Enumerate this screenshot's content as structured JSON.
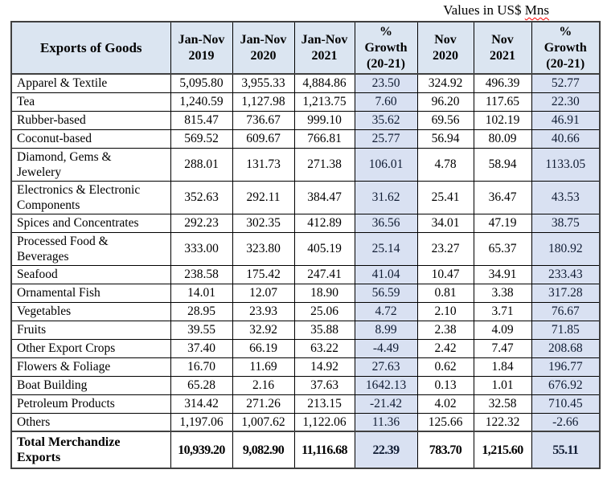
{
  "caption": {
    "prefix": "Values in US$",
    "misspelled_word": "Mns"
  },
  "table": {
    "columns": [
      "Exports of Goods",
      "Jan-Nov\n2019",
      "Jan-Nov\n2020",
      "Jan-Nov\n2021",
      "%\nGrowth\n(20-21)",
      "Nov\n2020",
      "Nov\n2021",
      "%\nGrowth\n(20-21)"
    ],
    "rows": [
      {
        "label": "Apparel & Textile",
        "values": [
          "5,095.80",
          "3,955.33",
          "4,884.86",
          "23.50",
          "324.92",
          "496.39",
          "52.77"
        ]
      },
      {
        "label": "Tea",
        "values": [
          "1,240.59",
          "1,127.98",
          "1,213.75",
          "7.60",
          "96.20",
          "117.65",
          "22.30"
        ]
      },
      {
        "label": "Rubber-based",
        "values": [
          "815.47",
          "736.67",
          "999.10",
          "35.62",
          "69.56",
          "102.19",
          "46.91"
        ]
      },
      {
        "label": "Coconut-based",
        "values": [
          "569.52",
          "609.67",
          "766.81",
          "25.77",
          "56.94",
          "80.09",
          "40.66"
        ]
      },
      {
        "label": "Diamond, Gems &\nJewelery",
        "values": [
          "288.01",
          "131.73",
          "271.38",
          "106.01",
          "4.78",
          "58.94",
          "1133.05"
        ]
      },
      {
        "label": "Electronics & Electronic\nComponents",
        "values": [
          "352.63",
          "292.11",
          "384.47",
          "31.62",
          "25.41",
          "36.47",
          "43.53"
        ]
      },
      {
        "label": "Spices and Concentrates",
        "values": [
          "292.23",
          "302.35",
          "412.89",
          "36.56",
          "34.01",
          "47.19",
          "38.75"
        ]
      },
      {
        "label": "Processed Food &\nBeverages",
        "values": [
          "333.00",
          "323.80",
          "405.19",
          "25.14",
          "23.27",
          "65.37",
          "180.92"
        ]
      },
      {
        "label": "Seafood",
        "values": [
          "238.58",
          "175.42",
          "247.41",
          "41.04",
          "10.47",
          "34.91",
          "233.43"
        ]
      },
      {
        "label": "Ornamental Fish",
        "values": [
          "14.01",
          "12.07",
          "18.90",
          "56.59",
          "0.81",
          "3.38",
          "317.28"
        ]
      },
      {
        "label": "Vegetables",
        "values": [
          "28.95",
          "23.93",
          "25.06",
          "4.72",
          "2.10",
          "3.71",
          "76.67"
        ]
      },
      {
        "label": "Fruits",
        "values": [
          "39.55",
          "32.92",
          "35.88",
          "8.99",
          "2.38",
          "4.09",
          "71.85"
        ]
      },
      {
        "label": "Other Export Crops",
        "values": [
          "37.40",
          "66.19",
          "63.22",
          "-4.49",
          "2.42",
          "7.47",
          "208.68"
        ]
      },
      {
        "label": "Flowers & Foliage",
        "values": [
          "16.70",
          "11.69",
          "14.92",
          "27.63",
          "0.62",
          "1.84",
          "196.77"
        ]
      },
      {
        "label": "Boat Building",
        "values": [
          "65.28",
          "2.16",
          "37.63",
          "1642.13",
          "0.13",
          "1.01",
          "676.92"
        ]
      },
      {
        "label": "Petroleum Products",
        "values": [
          "314.42",
          "271.26",
          "213.15",
          "-21.42",
          "4.02",
          "32.58",
          "710.45"
        ]
      },
      {
        "label": "Others",
        "values": [
          "1,197.06",
          "1,007.62",
          "1,122.06",
          "11.36",
          "125.66",
          "122.32",
          "-2.66"
        ]
      }
    ],
    "total": {
      "label": "Total Merchandize\nExports",
      "values": [
        "10,939.20",
        "9,082.90",
        "11,116.68",
        "22.39",
        "783.70",
        "1,215.60",
        "55.11"
      ]
    }
  },
  "colors": {
    "header_bg": "#dbe5f1",
    "growth_bg": "#d9e1f2",
    "growth_text": "#101c33",
    "grid_border": "#000000",
    "outer_border": "#404040",
    "squiggle": "#ff0000"
  }
}
